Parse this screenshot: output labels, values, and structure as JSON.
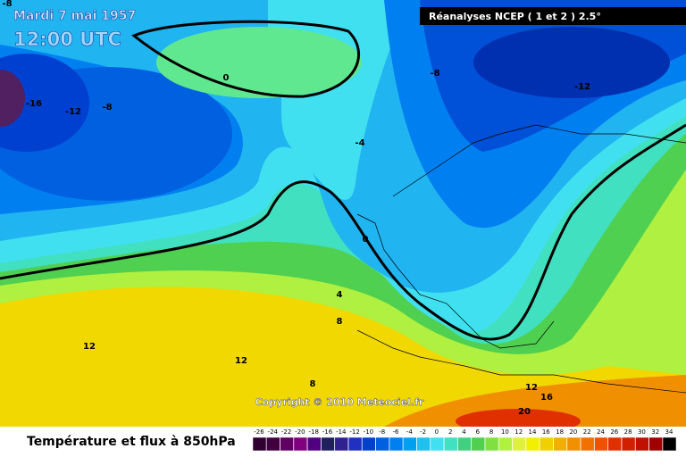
{
  "header": {
    "date": "Mardi 7 mai 1957",
    "time": "12:00 UTC",
    "source": "Réanalyses NCEP ( 1 et 2 ) 2.5°"
  },
  "map": {
    "contour_labels": [
      "-8",
      "0",
      "-16",
      "-12",
      "-8",
      "-8",
      "-12",
      "-4",
      "0",
      "4",
      "8",
      "12",
      "12",
      "8",
      "12",
      "16",
      "20"
    ],
    "copyright": "Copyright © 2010 Meteociel.fr"
  },
  "footer": {
    "title": "Température et flux à 850hPa"
  },
  "legend": {
    "values": [
      -26,
      -24,
      -22,
      -20,
      -18,
      -16,
      -14,
      -12,
      -10,
      -8,
      -6,
      -4,
      -2,
      0,
      2,
      4,
      6,
      8,
      10,
      12,
      14,
      16,
      18,
      20,
      22,
      24,
      26,
      28,
      30,
      32,
      34
    ],
    "colors": [
      "#300030",
      "#400040",
      "#600060",
      "#800080",
      "#500080",
      "#202060",
      "#302090",
      "#2030c0",
      "#0040d0",
      "#0060e0",
      "#0080f0",
      "#00a0f0",
      "#20c0f0",
      "#40e0f0",
      "#40e0c0",
      "#40d080",
      "#50d050",
      "#80e040",
      "#b0f040",
      "#e0f040",
      "#f0f000",
      "#f0d000",
      "#f0b000",
      "#f09000",
      "#f07000",
      "#f05000",
      "#e03000",
      "#d02000",
      "#c01000",
      "#a00000",
      "#000000"
    ]
  }
}
